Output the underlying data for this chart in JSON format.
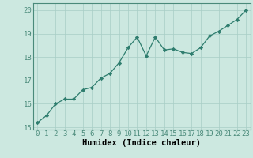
{
  "x": [
    0,
    1,
    2,
    3,
    4,
    5,
    6,
    7,
    8,
    9,
    10,
    11,
    12,
    13,
    14,
    15,
    16,
    17,
    18,
    19,
    20,
    21,
    22,
    23
  ],
  "y": [
    15.2,
    15.5,
    16.0,
    16.2,
    16.2,
    16.6,
    16.7,
    17.1,
    17.3,
    17.75,
    18.4,
    18.85,
    18.05,
    18.85,
    18.3,
    18.35,
    18.2,
    18.15,
    18.4,
    18.9,
    19.1,
    19.35,
    19.6,
    20.0
  ],
  "line_color": "#2e7d6e",
  "marker": "D",
  "marker_size": 2.2,
  "bg_color": "#cce8e0",
  "grid_color": "#a8cec6",
  "xlabel": "Humidex (Indice chaleur)",
  "xlim": [
    -0.5,
    23.5
  ],
  "ylim": [
    14.9,
    20.3
  ],
  "yticks": [
    15,
    16,
    17,
    18,
    19,
    20
  ],
  "xticks": [
    0,
    1,
    2,
    3,
    4,
    5,
    6,
    7,
    8,
    9,
    10,
    11,
    12,
    13,
    14,
    15,
    16,
    17,
    18,
    19,
    20,
    21,
    22,
    23
  ],
  "xlabel_fontsize": 7.5,
  "tick_fontsize": 6.5,
  "line_width": 0.9,
  "spine_color": "#4a8a7a"
}
